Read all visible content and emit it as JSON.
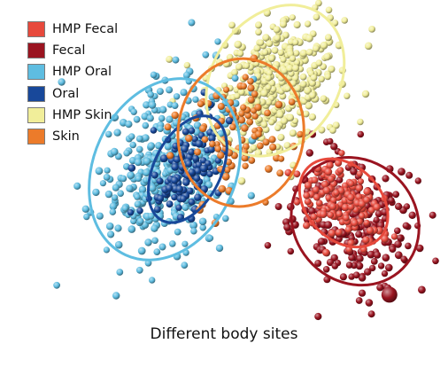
{
  "chart_data": {
    "type": "scatter",
    "title": "",
    "xlabel": "Different body sites",
    "ylabel": "",
    "axes_visible": false,
    "grid": false,
    "legend_position": "top-left",
    "style": "3d-spheres",
    "series": [
      {
        "name": "HMP Fecal",
        "color": "#e7493c",
        "centroid": [
          0.74,
          0.62
        ],
        "spread": [
          0.06,
          0.055
        ],
        "tilt": 0.78,
        "n": 150
      },
      {
        "name": "Fecal",
        "color": "#9a1420",
        "centroid": [
          0.77,
          0.68
        ],
        "spread": [
          0.08,
          0.09
        ],
        "tilt": 0.78,
        "n": 260
      },
      {
        "name": "HMP Oral",
        "color": "#5ebde1",
        "centroid": [
          0.27,
          0.51
        ],
        "spread": [
          0.085,
          0.14
        ],
        "tilt": 0.43,
        "n": 420
      },
      {
        "name": "Oral",
        "color": "#18489a",
        "centroid": [
          0.33,
          0.51
        ],
        "spread": [
          0.04,
          0.085
        ],
        "tilt": 0.46,
        "n": 120
      },
      {
        "name": "HMP Skin",
        "color": "#f1ee9a",
        "centroid": [
          0.56,
          0.22
        ],
        "spread": [
          0.075,
          0.12
        ],
        "tilt": 0.6,
        "n": 380
      },
      {
        "name": "Skin",
        "color": "#ec7b2a",
        "centroid": [
          0.47,
          0.39
        ],
        "spread": [
          0.075,
          0.11
        ],
        "tilt": 0.1,
        "n": 90
      }
    ]
  }
}
